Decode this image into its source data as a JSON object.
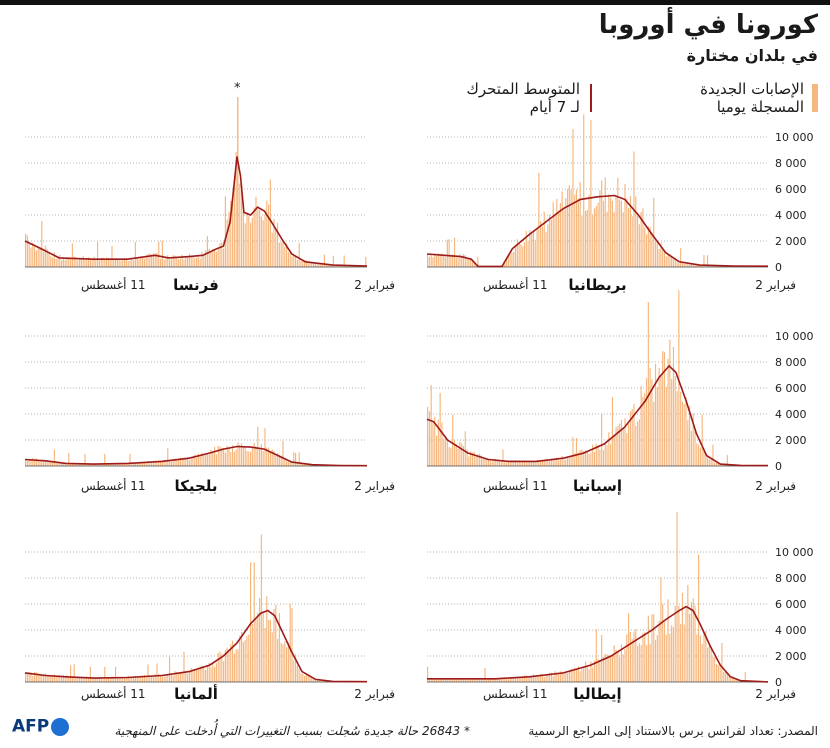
{
  "title": "كورونا في أوروبا",
  "subtitle": "في بلدان مختارة",
  "legend": {
    "bars_line1": "الإصابات الجديدة",
    "bars_line2": "المسجلة يوميا",
    "avg_line1": "المتوسط المتحرك",
    "avg_line2": "لـ 7 أيام",
    "bar_color": "#f6b77e",
    "avg_color": "#9e1b1b"
  },
  "footer": {
    "source": "المصدر: تعداد لفرانس برس بالاستناد إلى المراجع الرسمية",
    "note": "* 26843 حالة جديدة سُجلت بسبب التغييرات التي أُدخلت على المنهجية",
    "logo": "AFP"
  },
  "chart_data": [
    {
      "type": "bar",
      "country": "بريطانيا",
      "ylim": [
        0,
        10000
      ],
      "yticks": [
        "0",
        "2 000",
        "4 000",
        "6 000",
        "8 000",
        "10 000"
      ],
      "xlabel_start": "2 فبراير",
      "xlabel_end": "11 أغسطس",
      "avg_points": [
        [
          0,
          1000
        ],
        [
          5,
          900
        ],
        [
          10,
          800
        ],
        [
          13,
          600
        ],
        [
          15,
          50
        ],
        [
          22,
          50
        ],
        [
          25,
          1400
        ],
        [
          30,
          2500
        ],
        [
          35,
          3500
        ],
        [
          40,
          4500
        ],
        [
          45,
          5200
        ],
        [
          50,
          5400
        ],
        [
          55,
          5500
        ],
        [
          58,
          5200
        ],
        [
          62,
          4000
        ],
        [
          66,
          2500
        ],
        [
          70,
          1100
        ],
        [
          74,
          400
        ],
        [
          80,
          150
        ],
        [
          90,
          80
        ],
        [
          100,
          60
        ]
      ]
    },
    {
      "type": "bar",
      "country": "فرنسا",
      "ylim": [
        0,
        10000
      ],
      "annotation": "*",
      "xlabel_start": "2 فبراير",
      "xlabel_end": "11 أغسطس",
      "avg_points": [
        [
          0,
          2000
        ],
        [
          4,
          1500
        ],
        [
          10,
          700
        ],
        [
          20,
          600
        ],
        [
          30,
          600
        ],
        [
          38,
          900
        ],
        [
          42,
          700
        ],
        [
          48,
          800
        ],
        [
          52,
          900
        ],
        [
          56,
          1400
        ],
        [
          58,
          1600
        ],
        [
          60,
          3500
        ],
        [
          61,
          6000
        ],
        [
          62,
          8500
        ],
        [
          63,
          7000
        ],
        [
          64,
          4200
        ],
        [
          66,
          4000
        ],
        [
          68,
          4600
        ],
        [
          70,
          4300
        ],
        [
          72,
          3500
        ],
        [
          75,
          2200
        ],
        [
          78,
          1000
        ],
        [
          82,
          400
        ],
        [
          90,
          150
        ],
        [
          100,
          80
        ]
      ]
    },
    {
      "type": "bar",
      "country": "إسبانيا",
      "ylim": [
        0,
        10000
      ],
      "yticks": [
        "0",
        "2 000",
        "4 000",
        "6 000",
        "8 000",
        "10 000"
      ],
      "xlabel_start": "2 فبراير",
      "xlabel_end": "11 أغسطس",
      "avg_points": [
        [
          0,
          3600
        ],
        [
          2,
          3400
        ],
        [
          6,
          2000
        ],
        [
          12,
          1000
        ],
        [
          18,
          500
        ],
        [
          24,
          350
        ],
        [
          32,
          350
        ],
        [
          40,
          600
        ],
        [
          46,
          1000
        ],
        [
          52,
          1700
        ],
        [
          58,
          3000
        ],
        [
          64,
          5000
        ],
        [
          68,
          6800
        ],
        [
          71,
          7700
        ],
        [
          73,
          7200
        ],
        [
          76,
          5000
        ],
        [
          79,
          2500
        ],
        [
          82,
          800
        ],
        [
          86,
          150
        ],
        [
          92,
          50
        ],
        [
          100,
          30
        ]
      ]
    },
    {
      "type": "bar",
      "country": "بلجيكا",
      "ylim": [
        0,
        10000
      ],
      "xlabel_start": "2 فبراير",
      "xlabel_end": "11 أغسطس",
      "avg_points": [
        [
          0,
          500
        ],
        [
          6,
          400
        ],
        [
          12,
          200
        ],
        [
          20,
          150
        ],
        [
          30,
          200
        ],
        [
          40,
          350
        ],
        [
          48,
          600
        ],
        [
          54,
          1000
        ],
        [
          58,
          1300
        ],
        [
          62,
          1500
        ],
        [
          66,
          1450
        ],
        [
          70,
          1300
        ],
        [
          74,
          800
        ],
        [
          78,
          300
        ],
        [
          84,
          100
        ],
        [
          92,
          40
        ],
        [
          100,
          20
        ]
      ]
    },
    {
      "type": "bar",
      "country": "إيطاليا",
      "ylim": [
        0,
        10000
      ],
      "yticks": [
        "0",
        "2 000",
        "4 000",
        "6 000",
        "8 000",
        "10 000"
      ],
      "xlabel_start": "2 فبراير",
      "xlabel_end": "11 أغسطس",
      "avg_points": [
        [
          0,
          250
        ],
        [
          10,
          250
        ],
        [
          20,
          250
        ],
        [
          30,
          400
        ],
        [
          40,
          700
        ],
        [
          48,
          1300
        ],
        [
          54,
          2000
        ],
        [
          60,
          3000
        ],
        [
          66,
          4000
        ],
        [
          70,
          4800
        ],
        [
          74,
          5500
        ],
        [
          76,
          5800
        ],
        [
          78,
          5500
        ],
        [
          80,
          4500
        ],
        [
          83,
          2800
        ],
        [
          86,
          1300
        ],
        [
          89,
          400
        ],
        [
          92,
          100
        ],
        [
          100,
          10
        ]
      ]
    },
    {
      "type": "bar",
      "country": "ألمانيا",
      "ylim": [
        0,
        10000
      ],
      "xlabel_start": "2 فبراير",
      "xlabel_end": "11 أغسطس",
      "avg_points": [
        [
          0,
          700
        ],
        [
          6,
          500
        ],
        [
          12,
          400
        ],
        [
          20,
          300
        ],
        [
          30,
          350
        ],
        [
          40,
          500
        ],
        [
          48,
          800
        ],
        [
          54,
          1300
        ],
        [
          58,
          2000
        ],
        [
          62,
          3000
        ],
        [
          66,
          4500
        ],
        [
          69,
          5300
        ],
        [
          71,
          5500
        ],
        [
          73,
          5100
        ],
        [
          75,
          4000
        ],
        [
          78,
          2300
        ],
        [
          81,
          800
        ],
        [
          85,
          200
        ],
        [
          90,
          50
        ],
        [
          100,
          20
        ]
      ]
    }
  ]
}
